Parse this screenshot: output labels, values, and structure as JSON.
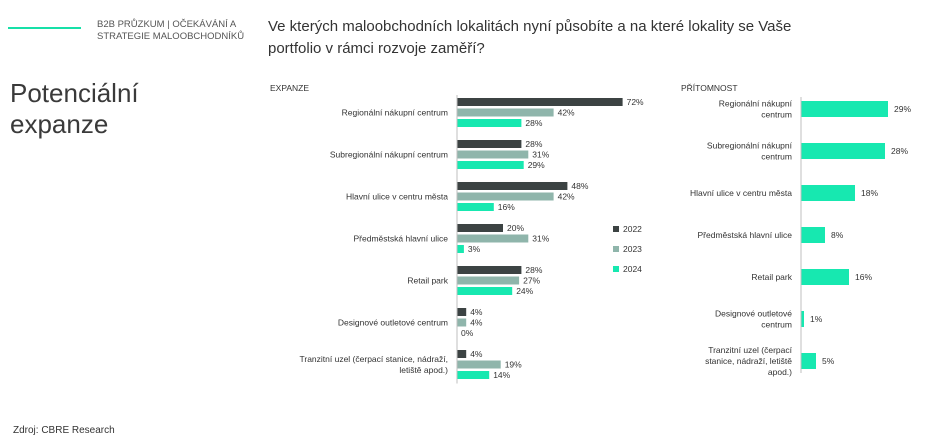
{
  "header": {
    "survey_label_line1": "B2B PRŮZKUM | OČEKÁVÁNÍ A",
    "survey_label_line2": "STRATEGIE MALOOBCHODNÍKŮ",
    "question_line1": "Ve kterých maloobchodních lokalitách nyní působíte a na které lokality se Vaše",
    "question_line2": "portfolio v rámci rozvoje zaměří?"
  },
  "page_title_line1": "Potenciální",
  "page_title_line2": "expanze",
  "source": "Zdroj: CBRE Research",
  "colors": {
    "2022": "#3c4343",
    "2023": "#8fb5ab",
    "2024": "#17e8b0",
    "accent": "#17e0a8"
  },
  "chart_data": [
    {
      "type": "bar",
      "orientation": "horizontal",
      "title": "EXPANZE",
      "unit": "%",
      "categories": [
        [
          "Regionální nákupní centrum"
        ],
        [
          "Subregionální nákupní centrum"
        ],
        [
          "Hlavní ulice v centru města"
        ],
        [
          "Předměstská hlavní ulice"
        ],
        [
          "Retail park"
        ],
        [
          "Designové outletové centrum"
        ],
        [
          "Tranzitní uzel (čerpací stanice, nádraží,",
          "letiště apod.)"
        ]
      ],
      "series": [
        {
          "name": "2022",
          "values": [
            72,
            28,
            48,
            20,
            28,
            4,
            4
          ]
        },
        {
          "name": "2023",
          "values": [
            42,
            31,
            42,
            31,
            27,
            4,
            19
          ]
        },
        {
          "name": "2024",
          "values": [
            28,
            29,
            16,
            3,
            24,
            0,
            14
          ]
        }
      ],
      "xlim": [
        0,
        100
      ],
      "legend_position": "right"
    },
    {
      "type": "bar",
      "orientation": "horizontal",
      "title": "PŘÍTOMNOST",
      "unit": "%",
      "categories": [
        [
          "Regionální nákupní",
          "centrum"
        ],
        [
          "Subregionální nákupní",
          "centrum"
        ],
        [
          "Hlavní ulice v centru města"
        ],
        [
          "Předměstská hlavní ulice"
        ],
        [
          "Retail park"
        ],
        [
          "Designové outletové",
          "centrum"
        ],
        [
          "Tranzitní uzel (čerpací",
          "stanice, nádraží, letiště",
          "apod.)"
        ]
      ],
      "series": [
        {
          "name": "2024",
          "values": [
            29,
            28,
            18,
            8,
            16,
            1,
            5
          ]
        }
      ],
      "xlim": [
        0,
        100
      ]
    }
  ]
}
